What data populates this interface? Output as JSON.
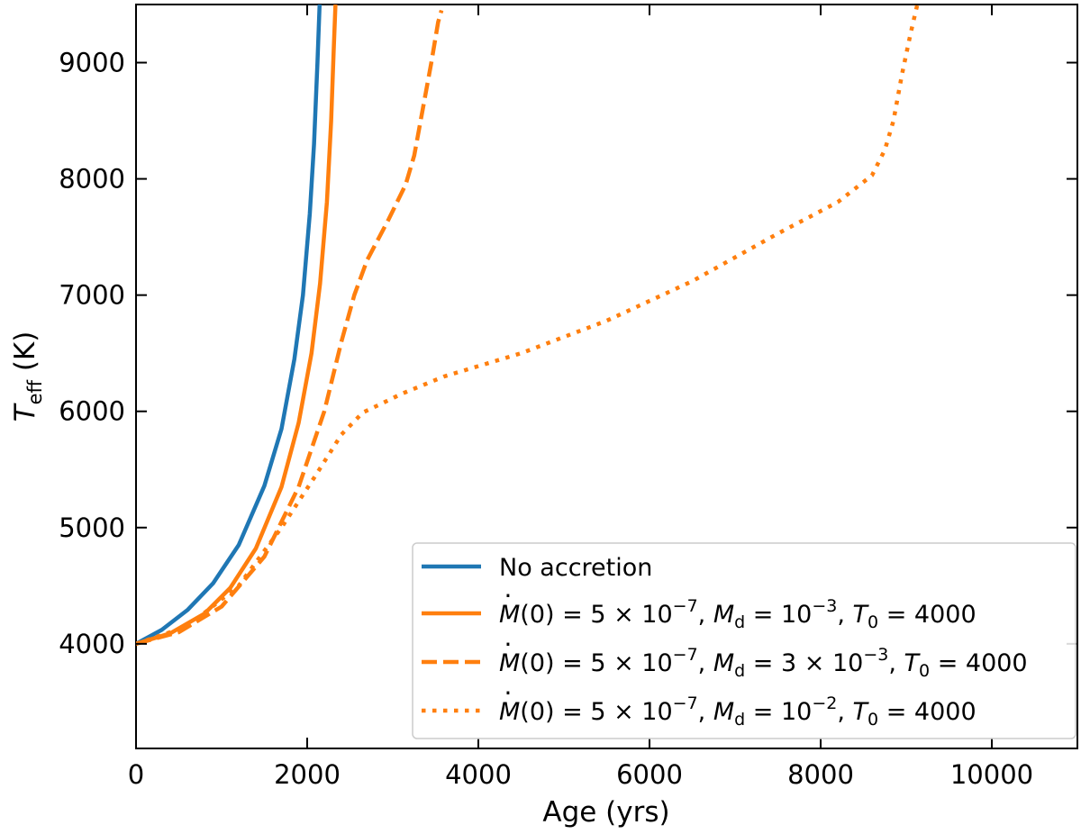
{
  "chart_data": {
    "type": "line",
    "xlabel": "Age (yrs)",
    "ylabel_main": "T",
    "ylabel_sub": "eff",
    "ylabel_unit": " (K)",
    "xlim": [
      0,
      11000
    ],
    "ylim": [
      3100,
      9500
    ],
    "xticks": [
      0,
      2000,
      4000,
      6000,
      8000,
      10000
    ],
    "yticks": [
      4000,
      5000,
      6000,
      7000,
      8000,
      9000
    ],
    "grid": false,
    "legend_position": "lower-right",
    "series": [
      {
        "name": "No accretion",
        "color": "#1f77b4",
        "style": "solid",
        "x": [
          0,
          300,
          600,
          900,
          1200,
          1500,
          1700,
          1850,
          1950,
          2030,
          2080,
          2120,
          2145
        ],
        "y": [
          4000,
          4120,
          4290,
          4520,
          4850,
          5360,
          5850,
          6450,
          7000,
          7700,
          8300,
          9000,
          9500
        ]
      },
      {
        "name": "M(0) = 5 × 10^-7, M_d = 10^-3, T_0 = 4000",
        "legend_parts": {
          "mdot": "M",
          "mdot_arg": "(0) = 5 × 10",
          "mdot_exp": "−7",
          "md": "M",
          "md_sub": "d",
          "md_val": " = 10",
          "md_exp": "−3",
          "t0": "T",
          "t0_sub": "0",
          "t0_val": " = 4000"
        },
        "color": "#ff7f0e",
        "style": "solid",
        "x": [
          0,
          400,
          800,
          1100,
          1400,
          1700,
          1900,
          2050,
          2150,
          2230,
          2280,
          2310,
          2330
        ],
        "y": [
          4000,
          4090,
          4260,
          4480,
          4820,
          5350,
          5900,
          6500,
          7100,
          7800,
          8500,
          9100,
          9500
        ]
      },
      {
        "name": "M(0) = 5 × 10^-7, M_d = 3 × 10^-3, T_0 = 4000",
        "legend_parts": {
          "mdot": "M",
          "mdot_arg": "(0) = 5 × 10",
          "mdot_exp": "−7",
          "md": "M",
          "md_sub": "d",
          "md_val": " = 3 × 10",
          "md_exp": "−3",
          "t0": "T",
          "t0_sub": "0",
          "t0_val": " = 4000"
        },
        "color": "#ff7f0e",
        "style": "dashed",
        "x": [
          0,
          500,
          1000,
          1500,
          1900,
          2200,
          2400,
          2550,
          2700,
          2950,
          3150,
          3250,
          3350,
          3450,
          3530,
          3570
        ],
        "y": [
          4000,
          4100,
          4320,
          4750,
          5350,
          6000,
          6600,
          7000,
          7300,
          7650,
          7950,
          8200,
          8600,
          9000,
          9350,
          9450
        ]
      },
      {
        "name": "M(0) = 5 × 10^-7, M_d = 10^-2, T_0 = 4000",
        "legend_parts": {
          "mdot": "M",
          "mdot_arg": "(0) = 5 × 10",
          "mdot_exp": "−7",
          "md": "M",
          "md_sub": "d",
          "md_val": " = 10",
          "md_exp": "−2",
          "t0": "T",
          "t0_sub": "0",
          "t0_val": " = 4000"
        },
        "color": "#ff7f0e",
        "style": "dotted",
        "x": [
          0,
          600,
          1200,
          1700,
          2100,
          2400,
          2650,
          2850,
          3100,
          3600,
          4500,
          5500,
          6500,
          7500,
          8200,
          8600,
          8750,
          8850,
          8950,
          9050,
          9130
        ],
        "y": [
          4000,
          4150,
          4500,
          5000,
          5450,
          5800,
          5990,
          6060,
          6150,
          6300,
          6500,
          6780,
          7120,
          7530,
          7800,
          8030,
          8250,
          8500,
          8900,
          9250,
          9500
        ]
      }
    ]
  }
}
